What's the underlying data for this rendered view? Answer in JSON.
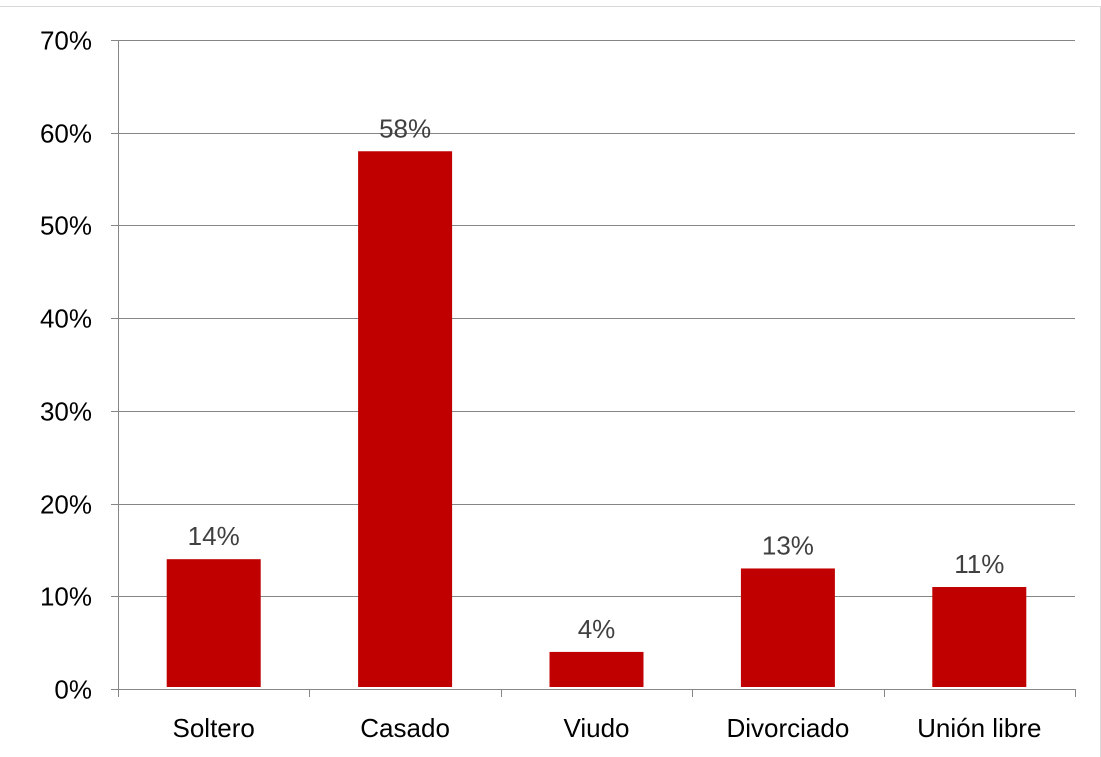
{
  "chart_data": {
    "type": "bar",
    "title": "",
    "xlabel": "",
    "ylabel": "",
    "categories": [
      "Soltero",
      "Casado",
      "Viudo",
      "Divorciado",
      "Unión libre"
    ],
    "values": [
      14,
      58,
      4,
      13,
      11
    ],
    "data_labels": [
      "14%",
      "58%",
      "4%",
      "13%",
      "11%"
    ],
    "ylim": [
      0,
      70
    ],
    "yticks": [
      0,
      10,
      20,
      30,
      40,
      50,
      60,
      70
    ],
    "ytick_labels": [
      "0%",
      "10%",
      "20%",
      "30%",
      "40%",
      "50%",
      "60%",
      "70%"
    ],
    "grid": true,
    "legend": "none",
    "bar_color": "#c00000"
  }
}
